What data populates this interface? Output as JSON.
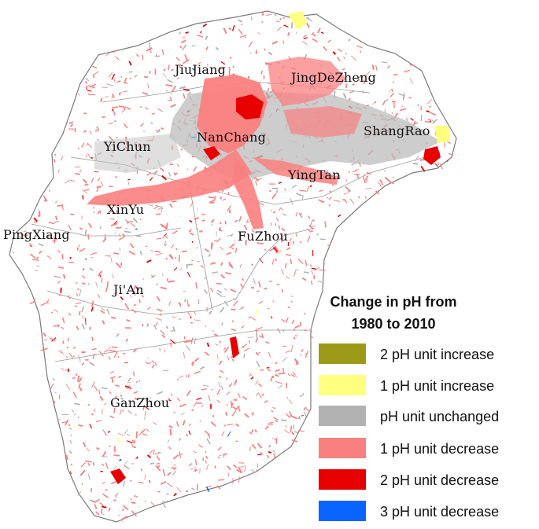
{
  "map": {
    "cities": [
      {
        "id": "jiujiang",
        "name": "JiuJiang"
      },
      {
        "id": "jingdezheng",
        "name": "JingDeZheng"
      },
      {
        "id": "shangrao",
        "name": "ShangRao"
      },
      {
        "id": "nanchang",
        "name": "NanChang"
      },
      {
        "id": "yichun",
        "name": "YiChun"
      },
      {
        "id": "yingtan",
        "name": "YingTan"
      },
      {
        "id": "xinyu",
        "name": "XinYu"
      },
      {
        "id": "pingxiang",
        "name": "PingXiang"
      },
      {
        "id": "fuzhou",
        "name": "FuZhou"
      },
      {
        "id": "jian",
        "name": "Ji'An"
      },
      {
        "id": "ganzhou",
        "name": "GanZhou"
      }
    ]
  },
  "legend": {
    "title_line1": "Change in pH from",
    "title_line2": "1980 to 2010",
    "items": [
      {
        "label": "2 pH unit increase",
        "color": "#9e9a19"
      },
      {
        "label": "1 pH unit increase",
        "color": "#ffff80"
      },
      {
        "label": "pH unit unchanged",
        "color": "#b2b2b2"
      },
      {
        "label": "1 pH unit decrease",
        "color": "#fa8080"
      },
      {
        "label": "2 pH unit decrease",
        "color": "#e60000"
      },
      {
        "label": "3 pH unit decrease",
        "color": "#0a64ff"
      }
    ]
  }
}
